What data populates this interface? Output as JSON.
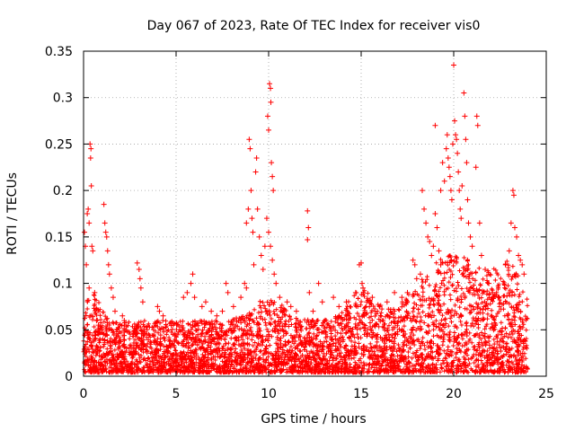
{
  "chart_data": {
    "type": "scatter",
    "title": "Day 067 of 2023, Rate Of TEC Index for receiver vis0",
    "xlabel": "GPS time / hours",
    "ylabel": "ROTI / TECUs",
    "xlim": [
      0,
      25
    ],
    "ylim": [
      0,
      0.35
    ],
    "xticks": [
      "0",
      "5",
      "10",
      "15",
      "20",
      "25"
    ],
    "yticks": [
      "0",
      "0.05",
      "0.1",
      "0.15",
      "0.2",
      "0.25",
      "0.3",
      "0.35"
    ],
    "grid": true,
    "legend": "none",
    "marker": "+",
    "color": "#ff0000",
    "series": [
      {
        "name": "ROTI",
        "points": [
          [
            0.05,
            0.155
          ],
          [
            0.1,
            0.14
          ],
          [
            0.15,
            0.12
          ],
          [
            0.2,
            0.175
          ],
          [
            0.25,
            0.18
          ],
          [
            0.3,
            0.165
          ],
          [
            0.35,
            0.25
          ],
          [
            0.38,
            0.235
          ],
          [
            0.4,
            0.245
          ],
          [
            0.42,
            0.205
          ],
          [
            0.45,
            0.14
          ],
          [
            0.5,
            0.135
          ],
          [
            0.3,
            0.095
          ],
          [
            0.6,
            0.09
          ],
          [
            0.7,
            0.06
          ],
          [
            0.8,
            0.055
          ],
          [
            1.1,
            0.185
          ],
          [
            1.15,
            0.165
          ],
          [
            1.2,
            0.155
          ],
          [
            1.25,
            0.15
          ],
          [
            1.3,
            0.135
          ],
          [
            1.35,
            0.12
          ],
          [
            1.4,
            0.11
          ],
          [
            1.5,
            0.095
          ],
          [
            1.6,
            0.085
          ],
          [
            1.7,
            0.07
          ],
          [
            2.1,
            0.065
          ],
          [
            2.2,
            0.06
          ],
          [
            2.9,
            0.122
          ],
          [
            3.0,
            0.115
          ],
          [
            3.05,
            0.105
          ],
          [
            3.1,
            0.095
          ],
          [
            3.2,
            0.08
          ],
          [
            4.0,
            0.075
          ],
          [
            4.1,
            0.07
          ],
          [
            4.3,
            0.065
          ],
          [
            5.4,
            0.085
          ],
          [
            5.6,
            0.09
          ],
          [
            5.8,
            0.1
          ],
          [
            5.9,
            0.11
          ],
          [
            6.0,
            0.085
          ],
          [
            6.4,
            0.075
          ],
          [
            6.6,
            0.08
          ],
          [
            6.9,
            0.07
          ],
          [
            7.2,
            0.065
          ],
          [
            7.5,
            0.07
          ],
          [
            7.7,
            0.1
          ],
          [
            7.8,
            0.09
          ],
          [
            8.1,
            0.075
          ],
          [
            8.5,
            0.085
          ],
          [
            8.7,
            0.1
          ],
          [
            8.8,
            0.095
          ],
          [
            8.8,
            0.165
          ],
          [
            8.9,
            0.18
          ],
          [
            8.95,
            0.255
          ],
          [
            9.0,
            0.245
          ],
          [
            9.05,
            0.2
          ],
          [
            9.1,
            0.17
          ],
          [
            9.15,
            0.155
          ],
          [
            9.2,
            0.12
          ],
          [
            9.3,
            0.22
          ],
          [
            9.35,
            0.235
          ],
          [
            9.4,
            0.18
          ],
          [
            9.5,
            0.15
          ],
          [
            9.6,
            0.13
          ],
          [
            9.7,
            0.115
          ],
          [
            9.8,
            0.14
          ],
          [
            9.9,
            0.17
          ],
          [
            9.95,
            0.28
          ],
          [
            10.0,
            0.265
          ],
          [
            10.05,
            0.315
          ],
          [
            10.1,
            0.31
          ],
          [
            10.12,
            0.295
          ],
          [
            10.15,
            0.23
          ],
          [
            10.2,
            0.215
          ],
          [
            10.25,
            0.2
          ],
          [
            10.0,
            0.155
          ],
          [
            10.1,
            0.14
          ],
          [
            10.2,
            0.125
          ],
          [
            10.3,
            0.11
          ],
          [
            10.4,
            0.1
          ],
          [
            10.6,
            0.085
          ],
          [
            11.0,
            0.08
          ],
          [
            11.2,
            0.075
          ],
          [
            11.5,
            0.07
          ],
          [
            12.1,
            0.178
          ],
          [
            12.15,
            0.16
          ],
          [
            12.1,
            0.147
          ],
          [
            12.2,
            0.09
          ],
          [
            12.4,
            0.07
          ],
          [
            12.7,
            0.1
          ],
          [
            12.9,
            0.08
          ],
          [
            13.5,
            0.085
          ],
          [
            13.8,
            0.075
          ],
          [
            14.2,
            0.08
          ],
          [
            14.7,
            0.09
          ],
          [
            14.9,
            0.12
          ],
          [
            15.0,
            0.122
          ],
          [
            15.05,
            0.1
          ],
          [
            15.1,
            0.095
          ],
          [
            15.3,
            0.08
          ],
          [
            15.6,
            0.085
          ],
          [
            16.0,
            0.075
          ],
          [
            16.4,
            0.08
          ],
          [
            16.8,
            0.09
          ],
          [
            17.2,
            0.085
          ],
          [
            17.5,
            0.09
          ],
          [
            17.8,
            0.125
          ],
          [
            17.9,
            0.12
          ],
          [
            18.0,
            0.105
          ],
          [
            18.2,
            0.11
          ],
          [
            18.3,
            0.2
          ],
          [
            18.4,
            0.18
          ],
          [
            18.5,
            0.165
          ],
          [
            18.6,
            0.15
          ],
          [
            18.7,
            0.145
          ],
          [
            18.8,
            0.13
          ],
          [
            18.9,
            0.14
          ],
          [
            19.0,
            0.175
          ],
          [
            19.1,
            0.16
          ],
          [
            19.2,
            0.135
          ],
          [
            19.3,
            0.12
          ],
          [
            19.0,
            0.27
          ],
          [
            19.3,
            0.2
          ],
          [
            19.4,
            0.23
          ],
          [
            19.5,
            0.21
          ],
          [
            19.6,
            0.245
          ],
          [
            19.65,
            0.26
          ],
          [
            19.7,
            0.235
          ],
          [
            19.75,
            0.225
          ],
          [
            19.8,
            0.215
          ],
          [
            19.85,
            0.2
          ],
          [
            19.9,
            0.19
          ],
          [
            19.95,
            0.25
          ],
          [
            20.0,
            0.335
          ],
          [
            20.05,
            0.275
          ],
          [
            20.1,
            0.26
          ],
          [
            20.15,
            0.255
          ],
          [
            20.2,
            0.24
          ],
          [
            20.25,
            0.22
          ],
          [
            20.3,
            0.2
          ],
          [
            20.35,
            0.18
          ],
          [
            20.4,
            0.17
          ],
          [
            20.45,
            0.205
          ],
          [
            20.55,
            0.305
          ],
          [
            20.6,
            0.28
          ],
          [
            20.65,
            0.255
          ],
          [
            20.7,
            0.23
          ],
          [
            20.75,
            0.19
          ],
          [
            20.8,
            0.165
          ],
          [
            20.9,
            0.15
          ],
          [
            21.0,
            0.14
          ],
          [
            21.2,
            0.225
          ],
          [
            21.25,
            0.28
          ],
          [
            21.3,
            0.27
          ],
          [
            21.4,
            0.165
          ],
          [
            21.5,
            0.13
          ],
          [
            21.7,
            0.115
          ],
          [
            21.9,
            0.1
          ],
          [
            22.1,
            0.09
          ],
          [
            22.4,
            0.085
          ],
          [
            22.8,
            0.12
          ],
          [
            23.0,
            0.135
          ],
          [
            23.1,
            0.165
          ],
          [
            23.2,
            0.2
          ],
          [
            23.25,
            0.195
          ],
          [
            23.3,
            0.16
          ],
          [
            23.4,
            0.15
          ],
          [
            23.5,
            0.13
          ],
          [
            23.6,
            0.125
          ],
          [
            23.7,
            0.12
          ],
          [
            23.8,
            0.11
          ]
        ]
      }
    ]
  }
}
